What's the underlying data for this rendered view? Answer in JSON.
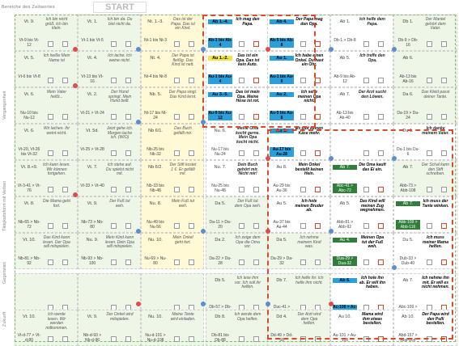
{
  "header": {
    "left_label": "Bereiche des Zeitwortes",
    "start": "START"
  },
  "side_labels": [
    "Vergangenheit",
    "Tätigkeitsform mit Verben",
    "Gegenwart",
    "Zukunft"
  ],
  "rows": [
    [
      {
        "code": "Vt. 9.",
        "text": "Ich bin nicht größ. Ich bin klein.",
        "pair": "Vt-9 bis Vt-12",
        "style": "g"
      },
      {
        "code": "Vt. 1.",
        "text": "Ich bin da. Du bist nicht da.",
        "pair": "Vt-1 bis Vt-5",
        "style": "g"
      },
      {
        "code": "Nt. 1.-3.",
        "text": "Das ist der Papa. Das ist ein Kind.",
        "pair": "Nt-1 bis Nt-3",
        "style": "y"
      },
      {
        "code": "Ab 1.-4.",
        "text": "Ich mag den Papa.",
        "pair": "Ab-1 bis Ab-4",
        "style": "b"
      },
      {
        "code": "Ab 4.",
        "text": "Der Papa mag den Opa.",
        "pair": "Ab-5 bis Ab-8",
        "style": "b"
      },
      {
        "code": "Ab 1.",
        "text": "Ich helfe dem Papa.",
        "pair": "Db-1 > Db-8",
        "style": "w"
      },
      {
        "code": "Db 1.",
        "text": "Der Mantel gehört dem Vater.",
        "pair": "Db-9 > Db-16",
        "style": "g"
      }
    ],
    [
      {
        "code": "Vt. 5.",
        "text": "Ich heiße Mein Name ist",
        "pair": "Vt-6 bis Vt-8",
        "style": "g"
      },
      {
        "code": "Vt. 4.",
        "text": "Ich lache. Ich weine nicht.",
        "pair": "Vt-13 bis Vt-16",
        "style": "g"
      },
      {
        "code": "Nt. 4.",
        "text": "Der Papa ist fleißig. Das Kind ist nett.",
        "pair": "Nt-4 bis Nt-8",
        "style": "y"
      },
      {
        "code": "Au 1.-2.",
        "text": "Das ist ein Opa. Das ist kein Auto.",
        "pair": "Au-1 bis Au-4",
        "style": "b"
      },
      {
        "code": "Au 1.",
        "text": "Ich habe einen Onkel. Du hast ein Ohr.",
        "pair": "Au-1 bis Au-8",
        "style": "b"
      },
      {
        "code": "Ab 5.",
        "text": "Ich treffe den Opa.",
        "pair": "Ab-9 bis Ab-12",
        "style": "w"
      },
      {
        "code": "Ab 6.",
        "text": "",
        "pair": "Ab-13 bis Ab-16",
        "style": "g"
      }
    ],
    [
      {
        "code": "Vt. 6.",
        "text": "Mein Vater heißt...",
        "pair": "Nu-10 bis Nu-12",
        "style": "g"
      },
      {
        "code": "Vt. 2.",
        "text": "Der Hund springt. Mein Hund bellt.",
        "pair": "Vt-21 > Vt-24",
        "style": "g"
      },
      {
        "code": "Nb. 5.",
        "text": "Der Papa singt. Das Kind lernt.",
        "pair": "Nt-17 bis Nt-24",
        "style": "y"
      },
      {
        "code": "Au 3.-5.",
        "text": "Das ist mein Opa. Meine Hose ist rot.",
        "pair": "Au-9 bis Au-12",
        "style": "b"
      },
      {
        "code": "Au 2.",
        "text": "Ich sehe meinen Opa nicht.",
        "pair": "Au-5 bis Au-8",
        "style": "b"
      },
      {
        "code": "Ab 7.",
        "text": "Der Arzt sucht den Löwen.",
        "pair": "Ab-13 bis Ab-40",
        "style": "w"
      },
      {
        "code": "Da 6.",
        "text": "Das Kleid passt deiner Tante.",
        "pair": "Da-19 > Da-24",
        "style": "g"
      }
    ],
    [
      {
        "code": "Vt. 6.",
        "text": "Wir lachen. Ihr weint nicht.",
        "pair": "Vt-20, Vt-26 bis Vt-32",
        "style": "g"
      },
      {
        "code": "Vt. 5d.",
        "text": "Jetzt gehe ich. Morgen lache ich. (W/O)",
        "pair": "Vt-25 > Vt-28",
        "style": "g"
      },
      {
        "code": "Nb 6/1.",
        "text": "Das Buch gefällt mir.",
        "pair": "Nb-25 bis Nb-32",
        "style": "y"
      },
      {
        "code": "Nu. 6.",
        "text": "Meine Oma kocht gerne. Mein Opa kocht nicht.",
        "pair": "Nu-17 bis Nu-24",
        "style": "w"
      },
      {
        "code": "Au 5.",
        "text": "Es gibt keinen Käse mehr.",
        "pair": "Au-17 bis Au-28",
        "style": "b"
      },
      {
        "code": "",
        "text": "",
        "pair": "",
        "style": "w"
      },
      {
        "code": "Du 1.",
        "text": "Ich danke meinem Vater.",
        "pair": "Du-1 bis Du-6",
        "style": "w"
      }
    ],
    [
      {
        "code": "Vt. 8.+9.",
        "text": "Ich kann lesen. Wir können fortgehen.",
        "pair": "Vt-3-41 > Vt-76",
        "style": "g"
      },
      {
        "code": "Vt. 7.",
        "text": "Ich stehe auf. Du spielst nicht mit.",
        "pair": "Vt-33 > Vt-40",
        "style": "g"
      },
      {
        "code": "Nb 6/2.",
        "text": "Der Stift kostet 1 €. Er gefällt mir.",
        "pair": "Nb-33 bis Nb-48",
        "style": "y"
      },
      {
        "code": "Nu. 7.",
        "text": "Dein Buch gehört mir. Nicht mir!",
        "pair": "Nu-25 bis Nu-48",
        "style": "w"
      },
      {
        "code": "Au 8.",
        "text": "Mein Onkel bestellt keinen Hein.",
        "pair": "Au-29 bis Au-36",
        "style": "k"
      },
      {
        "code": "Ab 7.",
        "text": "Die Oma kauft das Ei ein.",
        "pair": "Abc-41 > Abc-72",
        "style": "d"
      },
      {
        "code": "Ab 7.",
        "text": "Der Schal kann den Stift schreiben.",
        "pair": "Abb-73 > Abb-108",
        "style": "g"
      }
    ],
    [
      {
        "code": "Vt. 8.",
        "text": "Die Mama geht fort.",
        "pair": "Nb-65 > Nb-72",
        "style": "g"
      },
      {
        "code": "Vt. 9.",
        "text": "Der Fuß tut weh.",
        "pair": "Nb-73 > Nb-80",
        "style": "g"
      },
      {
        "code": "Nu. 8.",
        "text": "Mein Fuß tut weh.",
        "pair": "Nu-49 bis Nu-56",
        "style": "y"
      },
      {
        "code": "Da 5.",
        "text": "Der Fuß tut dem Opa weh.",
        "pair": "Da-11 > Da-20",
        "style": "g"
      },
      {
        "code": "Au 5.",
        "text": "Ich hole meinen Bruder ab.",
        "pair": "Au-37 bis Au-44",
        "style": "k"
      },
      {
        "code": "Ab 5.",
        "text": "Das Kind will meinen Zug wegnehmen.",
        "pair": "Abb-81 > Abb-92",
        "style": "k"
      },
      {
        "code": "Ab 7.",
        "text": "Ich muss der Tante winken.",
        "pair": "Abb-109 > Abb-116",
        "style": "d"
      }
    ],
    [
      {
        "code": "Vt. 10.",
        "text": "Das Kind kann lesen. Der Opa will mitspielen.",
        "pair": "Nb-81 > Nb-92",
        "style": "g"
      },
      {
        "code": "Nu. 9.",
        "text": "Mein Kind kann lesen. Dein Opa will mitspielen.",
        "pair": "Nb-93 > Nb-100",
        "style": "g"
      },
      {
        "code": "Nu. 10.",
        "text": "Mein Onkel geht fort.",
        "pair": "Nu-69 > Nu-80",
        "style": "y"
      },
      {
        "code": "Da 2.",
        "text": "Ich zeige dem Opa die Oma vor.",
        "pair": "Da-22 > Da-28",
        "style": "g"
      },
      {
        "code": "Da 5.",
        "text": "Ich nehme meinem Kind was.",
        "pair": "Da-29 > Da-32",
        "style": "g"
      },
      {
        "code": "Au 4.",
        "text": "Meinen Opa tut der Fuß weh.",
        "pair": "Dua-29 > Dua-32",
        "style": "d"
      },
      {
        "code": "Du 5.",
        "text": "Ich muss meiner Mama helfen.",
        "pair": "Dub-33 > Dub-40",
        "style": "k"
      }
    ],
    [
      {
        "code": "",
        "text": "",
        "pair": "",
        "style": "g"
      },
      {
        "code": "",
        "text": "",
        "pair": "",
        "style": "g"
      },
      {
        "code": "",
        "text": "",
        "pair": "",
        "style": "g"
      },
      {
        "code": "Db 5.",
        "text": "Ich lese ihm vor. Ich soll ihr helfen.",
        "pair": "Db-57 > Db-60",
        "style": "g"
      },
      {
        "code": "Db 7.",
        "text": "Ich helfe ihr. Ich helfe ihm nicht.",
        "pair": "Duc-41 > Duc-48",
        "style": "g"
      },
      {
        "code": "Ab 6.",
        "text": "Ich hole ihn ab. Er will ihn haben.",
        "pair": "Ac-100 > Ac-108",
        "style": "b"
      },
      {
        "code": "Ab 7.",
        "text": "Ich nehme ihn mit. Er will es nicht nehmen.",
        "pair": "Abc-109 > Abc-156",
        "style": "k"
      }
    ],
    [
      {
        "code": "Vt. 10.",
        "text": "Ich werde lesen. Wir werden mitkommen.",
        "pair": "Vt-d-77 > Vt-d-80",
        "style": "g"
      },
      {
        "code": "Vt. 9.",
        "text": "Der Onkel wird mitspielen.",
        "pair": "Nb-d-93 > Nb-d-96",
        "style": "g"
      },
      {
        "code": "Nu. 10.",
        "text": "Meine Tante wird einladen.",
        "pair": "Nu-d-101 > Nu-d-108",
        "style": "g"
      },
      {
        "code": "Db 8.",
        "text": "Ich werde dem Opa helfen.",
        "pair": "Db-81 bis Db-88",
        "style": "g"
      },
      {
        "code": "Dd 4.",
        "text": "Der Arzt wird dem Opa helfen.",
        "pair": "Dd-49 > Dd-56",
        "style": "g"
      },
      {
        "code": "Au 10.",
        "text": "Mama wird ihm etwas bestellen.",
        "pair": "Au-101 > Au-108",
        "style": "k"
      },
      {
        "code": "Ab 10.",
        "text": "Der Papa wird den Pulli bestellen.",
        "pair": "Abd-157 > Abd-164",
        "style": "k"
      }
    ]
  ]
}
